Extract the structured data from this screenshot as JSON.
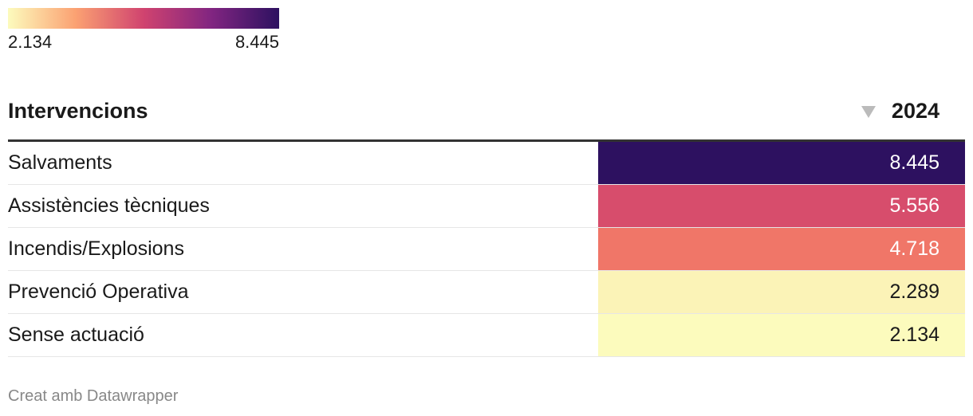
{
  "legend": {
    "min_label": "2.134",
    "max_label": "8.445",
    "gradient": [
      "#fcfbbd",
      "#fba172",
      "#d0436f",
      "#812581",
      "#2d1160"
    ]
  },
  "table": {
    "header": [
      "Intervencions",
      "2024"
    ],
    "rows": [
      [
        "Salvaments",
        "8.445"
      ],
      [
        "Assistències tècniques",
        "5.556"
      ],
      [
        "Incendis/Explosions",
        "4.718"
      ],
      [
        "Prevenció Operativa",
        "2.289"
      ],
      [
        "Sense actuació",
        "2.134"
      ]
    ],
    "cell_colors": [
      "#2d1160",
      "#d74d6c",
      "#f07668",
      "#fbf3b7",
      "#fcfbbd"
    ],
    "text_colors": [
      "#ffffff",
      "#ffffff",
      "#ffffff",
      "#1a1a1a",
      "#1a1a1a"
    ]
  },
  "footer": "Creat amb Datawrapper"
}
